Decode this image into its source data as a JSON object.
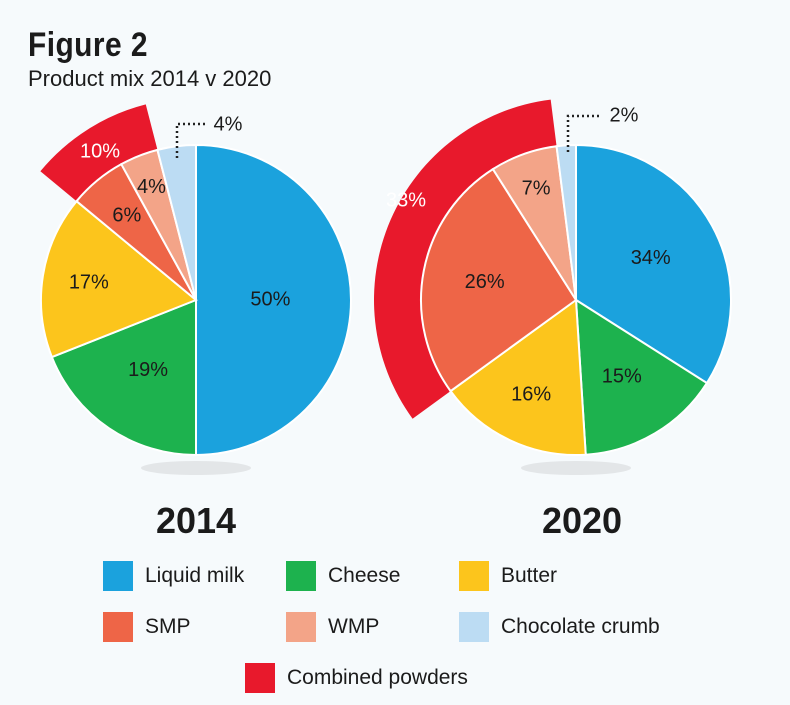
{
  "title": "Figure 2",
  "subtitle": "Product mix 2014 v 2020",
  "colors": {
    "Liquid milk": "#1ba2dd",
    "Cheese": "#1db24e",
    "Butter": "#fcc51c",
    "SMP": "#ee6547",
    "WMP": "#f3a488",
    "Chocolate crumb": "#bcdcf3",
    "Combined powders": "#e8192c"
  },
  "chart_data": [
    {
      "type": "pie",
      "title": "2014",
      "start": "top",
      "direction": "clockwise",
      "slices": [
        {
          "name": "Liquid milk",
          "value": 50,
          "label": "50%"
        },
        {
          "name": "Cheese",
          "value": 19,
          "label": "19%"
        },
        {
          "name": "Butter",
          "value": 17,
          "label": "17%"
        },
        {
          "name": "SMP",
          "value": 6,
          "label": "6%"
        },
        {
          "name": "WMP",
          "value": 4,
          "label": "4%"
        },
        {
          "name": "Chocolate crumb",
          "value": 4,
          "label": "4%"
        }
      ],
      "outer_ring": {
        "name": "Combined powders",
        "value": 10,
        "label": "10%",
        "covers": [
          "SMP",
          "WMP"
        ]
      }
    },
    {
      "type": "pie",
      "title": "2020",
      "start": "top",
      "direction": "clockwise",
      "slices": [
        {
          "name": "Liquid milk",
          "value": 34,
          "label": "34%"
        },
        {
          "name": "Cheese",
          "value": 15,
          "label": "15%"
        },
        {
          "name": "Butter",
          "value": 16,
          "label": "16%"
        },
        {
          "name": "SMP",
          "value": 26,
          "label": "26%"
        },
        {
          "name": "WMP",
          "value": 7,
          "label": "7%"
        },
        {
          "name": "Chocolate crumb",
          "value": 2,
          "label": "2%"
        }
      ],
      "outer_ring": {
        "name": "Combined powders",
        "value": 33,
        "label": "33%",
        "covers": [
          "SMP",
          "WMP"
        ]
      }
    }
  ],
  "legend": [
    "Liquid milk",
    "Cheese",
    "Butter",
    "SMP",
    "WMP",
    "Chocolate crumb",
    "Combined powders"
  ]
}
